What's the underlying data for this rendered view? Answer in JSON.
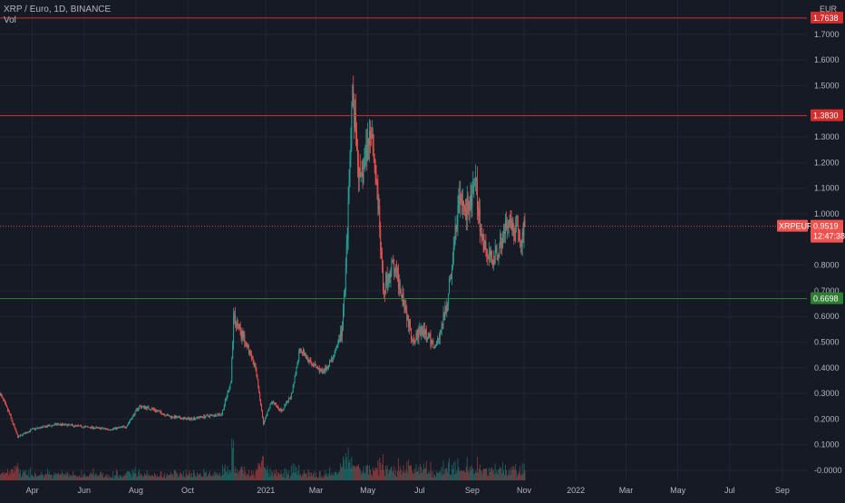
{
  "header": {
    "symbol_title": "XRP / Euro, 1D, BINANCE",
    "volume_label": "Vol"
  },
  "price_axis": {
    "currency": "EUR",
    "labels": [
      {
        "value": 1.7,
        "text": "1.7000"
      },
      {
        "value": 1.6,
        "text": "1.6000"
      },
      {
        "value": 1.5,
        "text": "1.5000"
      },
      {
        "value": 1.3,
        "text": "1.3000"
      },
      {
        "value": 1.2,
        "text": "1.2000"
      },
      {
        "value": 1.1,
        "text": "1.1000"
      },
      {
        "value": 1.0,
        "text": "1.0000"
      },
      {
        "value": 0.8,
        "text": "0.8000"
      },
      {
        "value": 0.7,
        "text": "0.7000"
      },
      {
        "value": 0.6,
        "text": "0.6000"
      },
      {
        "value": 0.5,
        "text": "0.5000"
      },
      {
        "value": 0.4,
        "text": "0.4000"
      },
      {
        "value": 0.3,
        "text": "0.3000"
      },
      {
        "value": 0.2,
        "text": "0.2000"
      },
      {
        "value": 0.1,
        "text": "0.1000"
      },
      {
        "value": 0.0,
        "text": "-0.0000"
      }
    ]
  },
  "horizontal_levels": [
    {
      "value": 1.7638,
      "text": "1.7638",
      "color": "#d32f2f"
    },
    {
      "value": 1.383,
      "text": "1.3830",
      "color": "#d32f2f"
    },
    {
      "value": 0.6698,
      "text": "0.6698",
      "color": "#2e7d32"
    }
  ],
  "last_price": {
    "symbol": "XRPEUR",
    "value": 0.9519,
    "text": "0.9519",
    "countdown": "12:47:38",
    "color": "#ef5350"
  },
  "time_axis": [
    {
      "date": "2020-04-01",
      "text": "Apr"
    },
    {
      "date": "2020-06-01",
      "text": "Jun"
    },
    {
      "date": "2020-08-01",
      "text": "Aug"
    },
    {
      "date": "2020-10-01",
      "text": "Oct"
    },
    {
      "date": "2021-01-01",
      "text": "2021"
    },
    {
      "date": "2021-03-01",
      "text": "Mar"
    },
    {
      "date": "2021-05-01",
      "text": "May"
    },
    {
      "date": "2021-07-01",
      "text": "Jul"
    },
    {
      "date": "2021-09-01",
      "text": "Sep"
    },
    {
      "date": "2021-11-01",
      "text": "Nov"
    },
    {
      "date": "2022-01-01",
      "text": "2022"
    },
    {
      "date": "2022-03-01",
      "text": "Mar"
    },
    {
      "date": "2022-05-01",
      "text": "May"
    },
    {
      "date": "2022-07-01",
      "text": "Jul"
    },
    {
      "date": "2022-09-01",
      "text": "Sep"
    }
  ],
  "colors": {
    "background": "#161a25",
    "up": "#26a69a",
    "down": "#ef5350",
    "grid": "#222631",
    "axis_text": "#b2b5be"
  },
  "chart_data": {
    "type": "candlestick",
    "title": "XRP / Euro, 1D, BINANCE",
    "ylabel": "EUR",
    "ylim": [
      -0.05,
      1.8
    ],
    "xlim": [
      "2020-02-23",
      "2022-09-30"
    ],
    "grid": true,
    "price_points": [
      [
        "2020-02-23",
        0.3
      ],
      [
        "2020-03-05",
        0.22
      ],
      [
        "2020-03-15",
        0.13
      ],
      [
        "2020-04-01",
        0.16
      ],
      [
        "2020-05-01",
        0.18
      ],
      [
        "2020-06-01",
        0.17
      ],
      [
        "2020-07-01",
        0.16
      ],
      [
        "2020-07-20",
        0.17
      ],
      [
        "2020-08-05",
        0.25
      ],
      [
        "2020-08-20",
        0.24
      ],
      [
        "2020-09-10",
        0.21
      ],
      [
        "2020-10-01",
        0.2
      ],
      [
        "2020-10-20",
        0.21
      ],
      [
        "2020-11-10",
        0.22
      ],
      [
        "2020-11-21",
        0.35
      ],
      [
        "2020-11-24",
        0.6
      ],
      [
        "2020-12-05",
        0.52
      ],
      [
        "2020-12-20",
        0.4
      ],
      [
        "2020-12-29",
        0.18
      ],
      [
        "2021-01-08",
        0.27
      ],
      [
        "2021-01-20",
        0.23
      ],
      [
        "2021-02-01",
        0.3
      ],
      [
        "2021-02-10",
        0.48
      ],
      [
        "2021-02-22",
        0.42
      ],
      [
        "2021-03-10",
        0.38
      ],
      [
        "2021-03-25",
        0.47
      ],
      [
        "2021-04-01",
        0.55
      ],
      [
        "2021-04-06",
        0.85
      ],
      [
        "2021-04-13",
        1.45
      ],
      [
        "2021-04-22",
        1.1
      ],
      [
        "2021-05-05",
        1.35
      ],
      [
        "2021-05-12",
        1.1
      ],
      [
        "2021-05-19",
        0.7
      ],
      [
        "2021-05-30",
        0.8
      ],
      [
        "2021-06-10",
        0.7
      ],
      [
        "2021-06-22",
        0.52
      ],
      [
        "2021-07-05",
        0.54
      ],
      [
        "2021-07-20",
        0.48
      ],
      [
        "2021-08-01",
        0.62
      ],
      [
        "2021-08-10",
        0.85
      ],
      [
        "2021-08-16",
        1.05
      ],
      [
        "2021-08-25",
        1.02
      ],
      [
        "2021-09-06",
        1.1
      ],
      [
        "2021-09-10",
        0.95
      ],
      [
        "2021-09-20",
        0.82
      ],
      [
        "2021-10-01",
        0.85
      ],
      [
        "2021-10-10",
        0.95
      ],
      [
        "2021-10-20",
        0.93
      ],
      [
        "2021-10-28",
        0.9
      ],
      [
        "2021-11-02",
        0.9519
      ]
    ]
  }
}
